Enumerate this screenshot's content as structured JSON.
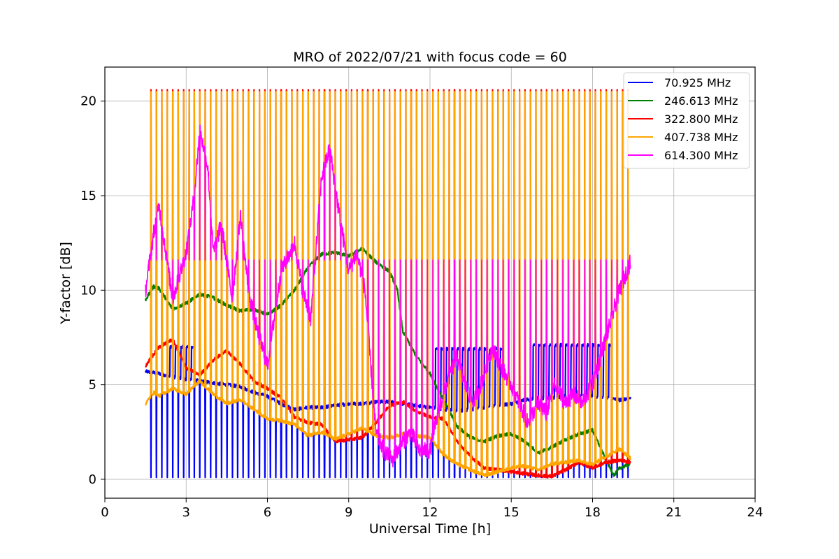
{
  "chart_data": {
    "type": "line",
    "title": "MRO of 2022/07/21 with focus code = 60",
    "xlabel": "Universal Time [h]",
    "ylabel": "Y-factor [dB]",
    "xlim": [
      0,
      24
    ],
    "ylim": [
      -1,
      21.8
    ],
    "xticks": [
      0,
      3,
      6,
      9,
      12,
      15,
      18,
      21,
      24
    ],
    "yticks": [
      0,
      5,
      10,
      15,
      20
    ],
    "grid": true,
    "legend_position": "top-right",
    "series": [
      {
        "name": "  70.925 MHz",
        "color": "#0000ff",
        "x": [
          1.5,
          2,
          2.5,
          3,
          3.5,
          4,
          4.5,
          5,
          5.5,
          6,
          6.5,
          7,
          7.5,
          8,
          8.5,
          9,
          9.5,
          10,
          10.5,
          11,
          11.5,
          12,
          12.5,
          13,
          13.5,
          14,
          14.5,
          15,
          15.5,
          16,
          16.5,
          17,
          17.5,
          18,
          18.5,
          19,
          19.4
        ],
        "values": [
          5.7,
          5.6,
          5.4,
          5.3,
          5.2,
          5.1,
          5.0,
          4.9,
          4.6,
          4.4,
          4.0,
          3.7,
          3.8,
          3.8,
          3.9,
          4.0,
          4.0,
          4.1,
          4.1,
          4.0,
          3.9,
          3.8,
          3.7,
          3.6,
          3.7,
          3.8,
          3.9,
          4.0,
          4.2,
          4.3,
          4.3,
          4.4,
          4.4,
          4.4,
          4.3,
          4.2,
          4.3
        ],
        "dips_to": 0.1,
        "upper_level": [
          {
            "from": 2.3,
            "to": 3.3,
            "value": 7.0
          },
          {
            "from": 12.1,
            "to": 14.8,
            "value": 6.9
          },
          {
            "from": 15.7,
            "to": 18.8,
            "value": 7.1
          }
        ]
      },
      {
        "name": "246.613 MHz",
        "color": "#008000",
        "x": [
          1.5,
          1.8,
          2.0,
          2.5,
          3.0,
          3.5,
          4.0,
          4.5,
          5.0,
          5.5,
          6.0,
          6.5,
          7.0,
          7.5,
          8.0,
          8.5,
          9.0,
          9.5,
          10.0,
          10.5,
          10.8,
          11.0,
          11.5,
          12.0,
          12.5,
          13.0,
          13.5,
          14.0,
          14.5,
          15.0,
          15.5,
          16.0,
          16.5,
          17.0,
          17.5,
          18.0,
          18.5,
          18.8,
          19.0,
          19.4
        ],
        "values": [
          9.5,
          10.2,
          10.1,
          9.0,
          9.3,
          9.8,
          9.6,
          9.2,
          8.9,
          9.0,
          8.7,
          9.2,
          10.0,
          11.2,
          11.9,
          12.0,
          11.8,
          12.2,
          11.5,
          11.0,
          10.0,
          7.8,
          6.5,
          5.6,
          4.2,
          2.8,
          2.2,
          2.0,
          2.3,
          2.4,
          2.0,
          1.4,
          1.7,
          2.1,
          2.4,
          2.6,
          1.0,
          0.2,
          0.6,
          0.8
        ]
      },
      {
        "name": "322.800 MHz",
        "color": "#ff0000",
        "x": [
          1.5,
          2.0,
          2.5,
          3.0,
          3.5,
          4.0,
          4.5,
          5.0,
          5.5,
          6.0,
          6.5,
          7.0,
          7.5,
          8.0,
          8.5,
          9.0,
          9.5,
          10.0,
          10.5,
          11.0,
          11.5,
          12.0,
          12.5,
          13.0,
          13.5,
          14.0,
          14.5,
          15.0,
          15.5,
          16.0,
          16.5,
          17.0,
          17.5,
          18.0,
          18.5,
          19.0,
          19.4
        ],
        "values": [
          6.0,
          7.0,
          7.4,
          5.9,
          5.5,
          6.3,
          6.8,
          6.1,
          5.2,
          4.8,
          4.3,
          3.3,
          3.0,
          2.9,
          2.0,
          2.1,
          2.2,
          3.0,
          3.9,
          4.1,
          3.6,
          3.3,
          3.2,
          2.0,
          1.2,
          0.6,
          0.5,
          0.4,
          0.3,
          0.2,
          0.15,
          0.5,
          0.9,
          0.6,
          0.9,
          1.0,
          0.9
        ],
        "spikes_to": 20.6
      },
      {
        "name": "407.738 MHz",
        "color": "#ffa500",
        "x": [
          1.5,
          1.8,
          2.0,
          2.5,
          3.0,
          3.5,
          4.0,
          4.5,
          5.0,
          5.5,
          6.0,
          6.5,
          7.0,
          7.5,
          8.0,
          8.5,
          9.0,
          9.5,
          10.0,
          10.5,
          11.0,
          11.5,
          12.0,
          12.5,
          13.0,
          13.5,
          14.0,
          14.5,
          15.0,
          15.5,
          16.0,
          16.5,
          17.0,
          17.5,
          18.0,
          18.5,
          19.0,
          19.4
        ],
        "values": [
          4.0,
          4.6,
          4.4,
          4.8,
          4.5,
          5.2,
          4.5,
          4.0,
          4.2,
          3.7,
          3.2,
          3.1,
          2.9,
          2.3,
          2.5,
          2.1,
          2.4,
          2.7,
          2.3,
          2.2,
          2.4,
          2.3,
          2.2,
          1.3,
          0.8,
          0.5,
          0.2,
          0.4,
          0.6,
          0.7,
          0.5,
          0.8,
          0.9,
          1.0,
          0.8,
          1.2,
          1.6,
          1.1
        ],
        "spikes_to": 20.5,
        "mid_level": 11.6
      },
      {
        "name": "614.300 MHz",
        "color": "#ff00ff",
        "x": [
          1.5,
          1.8,
          2.0,
          2.5,
          3.0,
          3.3,
          3.5,
          3.8,
          4.0,
          4.3,
          4.7,
          5.0,
          5.3,
          5.6,
          6.0,
          6.5,
          7.0,
          7.3,
          7.6,
          8.0,
          8.3,
          8.6,
          9.0,
          9.3,
          9.6,
          10.0,
          10.3,
          10.6,
          11.0,
          11.3,
          11.6,
          12.0,
          12.3,
          12.6,
          13.0,
          13.3,
          13.6,
          14.0,
          14.3,
          14.6,
          15.0,
          15.3,
          15.6,
          16.0,
          16.3,
          16.6,
          17.0,
          17.3,
          17.6,
          18.0,
          18.3,
          18.6,
          19.0,
          19.4
        ],
        "values": [
          10.0,
          13.0,
          14.5,
          9.5,
          12.0,
          15.0,
          18.5,
          16.5,
          12.0,
          13.5,
          9.5,
          14.0,
          10.0,
          8.0,
          6.0,
          11.0,
          12.5,
          10.0,
          8.5,
          16.0,
          17.5,
          14.5,
          11.0,
          12.0,
          10.0,
          2.5,
          1.5,
          1.0,
          2.0,
          2.5,
          1.5,
          1.5,
          3.5,
          5.0,
          6.5,
          5.0,
          4.0,
          5.5,
          7.0,
          6.0,
          5.0,
          4.0,
          3.0,
          4.0,
          3.5,
          5.0,
          4.0,
          4.5,
          4.0,
          5.0,
          6.5,
          8.0,
          10.0,
          11.5
        ],
        "spikes_to": 11.6
      }
    ]
  }
}
